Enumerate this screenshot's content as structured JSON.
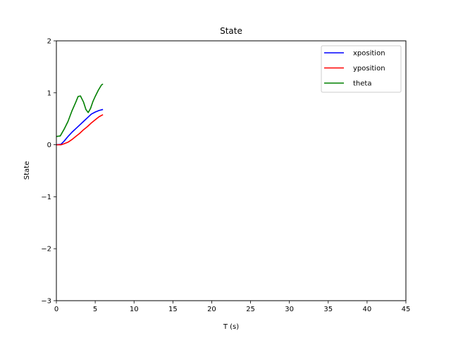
{
  "chart_data": {
    "type": "line",
    "title": "State",
    "xlabel": "T (s)",
    "ylabel": "State",
    "xlim": [
      0,
      45
    ],
    "ylim": [
      -3,
      2
    ],
    "xticks": [
      0,
      5,
      10,
      15,
      20,
      25,
      30,
      35,
      40,
      45
    ],
    "yticks": [
      -3,
      -2,
      -1,
      0,
      1,
      2
    ],
    "grid": false,
    "legend": "top-right",
    "series": [
      {
        "name": "xposition",
        "color": "#0000ff",
        "x": [
          0,
          0.6,
          1.0,
          1.5,
          2.0,
          2.5,
          3.0,
          3.5,
          4.0,
          4.5,
          5.0,
          5.5,
          6.0
        ],
        "y": [
          0.0,
          0.01,
          0.07,
          0.16,
          0.24,
          0.31,
          0.38,
          0.45,
          0.52,
          0.59,
          0.63,
          0.66,
          0.68
        ]
      },
      {
        "name": "yposition",
        "color": "#ff0000",
        "x": [
          0,
          0.6,
          1.0,
          1.5,
          2.0,
          2.5,
          3.0,
          3.5,
          4.0,
          4.5,
          5.0,
          5.5,
          6.0
        ],
        "y": [
          0.0,
          0.0,
          0.02,
          0.05,
          0.1,
          0.16,
          0.22,
          0.29,
          0.35,
          0.42,
          0.48,
          0.54,
          0.58
        ]
      },
      {
        "name": "theta",
        "color": "#008000",
        "x": [
          0,
          0.5,
          1.0,
          1.5,
          2.0,
          2.5,
          2.8,
          3.1,
          3.5,
          3.8,
          4.1,
          4.4,
          4.7,
          5.0,
          5.4,
          5.8,
          6.0
        ],
        "y": [
          0.16,
          0.17,
          0.3,
          0.45,
          0.65,
          0.82,
          0.93,
          0.94,
          0.82,
          0.68,
          0.62,
          0.7,
          0.83,
          0.93,
          1.05,
          1.15,
          1.17
        ]
      }
    ]
  }
}
